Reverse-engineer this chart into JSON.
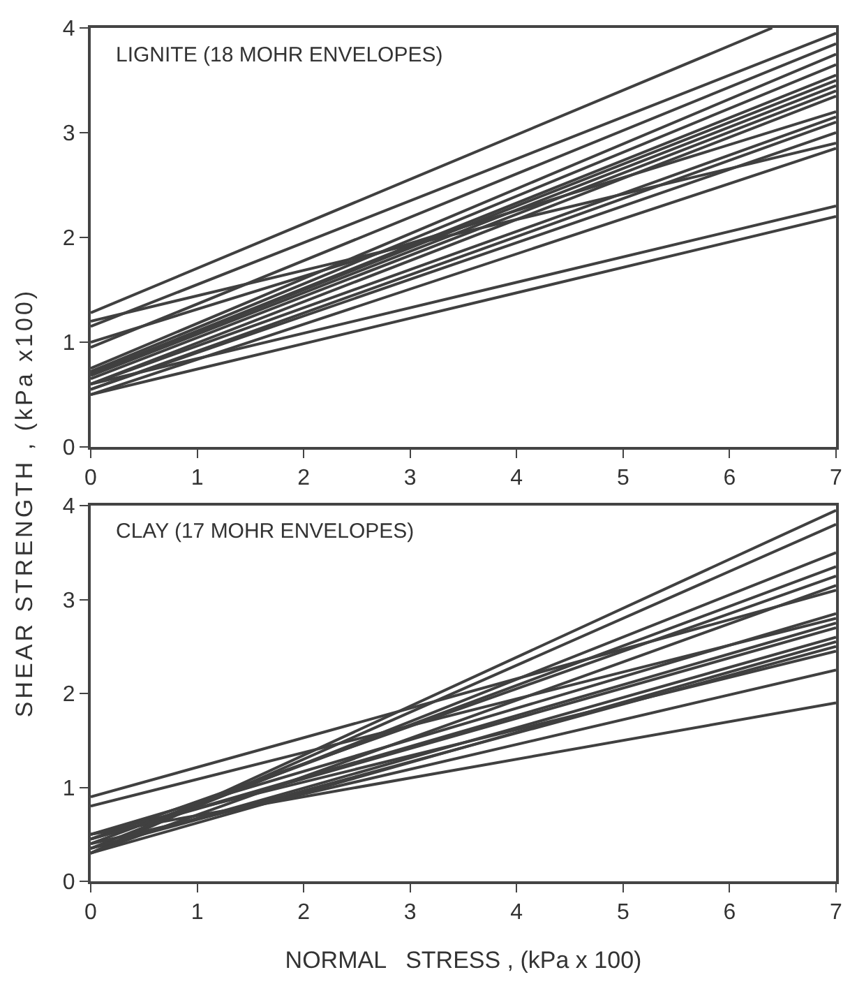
{
  "chart_data": [
    {
      "type": "line",
      "annotations": [
        "LIGNITE (18 MOHR ENVELOPES)"
      ],
      "ylabel": "SHEAR STRENGTH , (kPa x100)",
      "xlim": [
        0,
        7
      ],
      "ylim": [
        0,
        4
      ],
      "xticks": [
        0,
        1,
        2,
        3,
        4,
        5,
        6,
        7
      ],
      "yticks": [
        0,
        1,
        2,
        3,
        4
      ],
      "series": [
        {
          "color": "#404040",
          "x": [
            0,
            6.4
          ],
          "values": [
            1.28,
            4.0
          ]
        },
        {
          "color": "#404040",
          "x": [
            0,
            7
          ],
          "values": [
            1.2,
            2.9
          ]
        },
        {
          "color": "#404040",
          "x": [
            0,
            7
          ],
          "values": [
            1.15,
            3.95
          ]
        },
        {
          "color": "#404040",
          "x": [
            0,
            7
          ],
          "values": [
            1.0,
            3.2
          ]
        },
        {
          "color": "#404040",
          "x": [
            0,
            7
          ],
          "values": [
            0.95,
            3.85
          ]
        },
        {
          "color": "#404040",
          "x": [
            0,
            7
          ],
          "values": [
            0.75,
            3.75
          ]
        },
        {
          "color": "#404040",
          "x": [
            0,
            7
          ],
          "values": [
            0.72,
            3.65
          ]
        },
        {
          "color": "#404040",
          "x": [
            0,
            7
          ],
          "values": [
            0.7,
            3.55
          ]
        },
        {
          "color": "#404040",
          "x": [
            0,
            7
          ],
          "values": [
            0.7,
            3.5
          ]
        },
        {
          "color": "#404040",
          "x": [
            0,
            7
          ],
          "values": [
            0.68,
            3.45
          ]
        },
        {
          "color": "#404040",
          "x": [
            0,
            7
          ],
          "values": [
            0.65,
            3.4
          ]
        },
        {
          "color": "#404040",
          "x": [
            0,
            7
          ],
          "values": [
            0.6,
            3.35
          ]
        },
        {
          "color": "#404040",
          "x": [
            0,
            7
          ],
          "values": [
            0.6,
            3.15
          ]
        },
        {
          "color": "#404040",
          "x": [
            0,
            7
          ],
          "values": [
            0.55,
            3.1
          ]
        },
        {
          "color": "#404040",
          "x": [
            0,
            7
          ],
          "values": [
            0.55,
            3.0
          ]
        },
        {
          "color": "#404040",
          "x": [
            0,
            7
          ],
          "values": [
            0.5,
            2.85
          ]
        },
        {
          "color": "#404040",
          "x": [
            0,
            7
          ],
          "values": [
            0.6,
            2.3
          ]
        },
        {
          "color": "#404040",
          "x": [
            0,
            7
          ],
          "values": [
            0.5,
            2.2
          ]
        }
      ]
    },
    {
      "type": "line",
      "annotations": [
        "CLAY (17 MOHR ENVELOPES)"
      ],
      "xlabel": "NORMAL   STRESS , (kPa x 100)",
      "xlim": [
        0,
        7
      ],
      "ylim": [
        0,
        4
      ],
      "xticks": [
        0,
        1,
        2,
        3,
        4,
        5,
        6,
        7
      ],
      "yticks": [
        0,
        1,
        2,
        3,
        4
      ],
      "series": [
        {
          "color": "#404040",
          "x": [
            0,
            7
          ],
          "values": [
            0.9,
            3.1
          ]
        },
        {
          "color": "#404040",
          "x": [
            0,
            7
          ],
          "values": [
            0.8,
            2.8
          ]
        },
        {
          "color": "#404040",
          "x": [
            0,
            7
          ],
          "values": [
            0.3,
            3.95
          ]
        },
        {
          "color": "#404040",
          "x": [
            0,
            7
          ],
          "values": [
            0.3,
            3.8
          ]
        },
        {
          "color": "#404040",
          "x": [
            0,
            7
          ],
          "values": [
            0.35,
            3.5
          ]
        },
        {
          "color": "#404040",
          "x": [
            0,
            7
          ],
          "values": [
            0.4,
            3.35
          ]
        },
        {
          "color": "#404040",
          "x": [
            0,
            7
          ],
          "values": [
            0.45,
            3.25
          ]
        },
        {
          "color": "#404040",
          "x": [
            0,
            7
          ],
          "values": [
            0.5,
            2.85
          ]
        },
        {
          "color": "#404040",
          "x": [
            0,
            7
          ],
          "values": [
            0.45,
            2.7
          ]
        },
        {
          "color": "#404040",
          "x": [
            0,
            7
          ],
          "values": [
            0.3,
            2.55
          ]
        },
        {
          "color": "#404040",
          "x": [
            0,
            7
          ],
          "values": [
            0.35,
            2.5
          ]
        },
        {
          "color": "#404040",
          "x": [
            0,
            7
          ],
          "values": [
            0.5,
            2.45
          ]
        },
        {
          "color": "#404040",
          "x": [
            0,
            7
          ],
          "values": [
            0.4,
            2.25
          ]
        },
        {
          "color": "#404040",
          "x": [
            0,
            7
          ],
          "values": [
            0.5,
            1.9
          ]
        },
        {
          "color": "#404040",
          "x": [
            0,
            7
          ],
          "values": [
            0.3,
            3.15
          ]
        },
        {
          "color": "#404040",
          "x": [
            0,
            7
          ],
          "values": [
            0.45,
            2.75
          ]
        },
        {
          "color": "#404040",
          "x": [
            0,
            7
          ],
          "values": [
            0.35,
            2.6
          ]
        }
      ]
    }
  ]
}
